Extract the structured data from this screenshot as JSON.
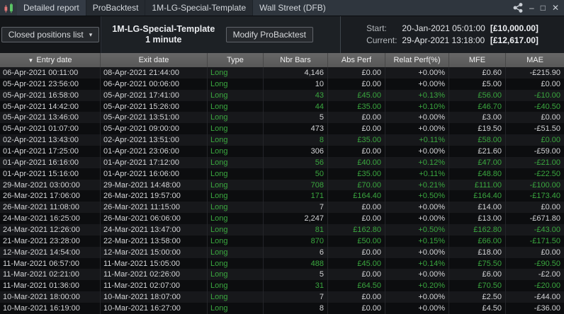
{
  "window": {
    "tabs": [
      {
        "label": "Detailed report",
        "active": true
      },
      {
        "label": "ProBacktest"
      },
      {
        "label": "1M-LG-Special-Template"
      },
      {
        "label": "Wall Street (DFB)",
        "plain": true
      }
    ],
    "controls": {
      "minimize": "–",
      "maximize": "□",
      "close": "✕"
    }
  },
  "toolbar": {
    "view_selector": {
      "label": "Closed positions list",
      "caret": "▾"
    },
    "instrument": {
      "name": "1M-LG-Special-Template",
      "timeframe": "1 minute"
    },
    "modify_button": "Modify ProBacktest",
    "account": {
      "start_label": "Start:",
      "start_date": "20-Jan-2021 05:01:00",
      "start_value": "[£10,000.00]",
      "current_label": "Current:",
      "current_date": "29-Apr-2021 13:18:00",
      "current_value": "[£12,617.00]"
    }
  },
  "colors": {
    "profit_green": "#3aa73f",
    "header_gray": "#5f5f5f",
    "titlebar": "#2f363e"
  },
  "table": {
    "sort_icon": "▼",
    "columns": [
      "Entry date",
      "Exit date",
      "Type",
      "Nbr Bars",
      "Abs Perf",
      "Relat Perf(%)",
      "MFE",
      "MAE"
    ],
    "column_keys": [
      "entry-date",
      "exit-date",
      "type",
      "nbr-bars",
      "abs-perf",
      "relat-perf",
      "mfe",
      "mae"
    ],
    "rows": [
      {
        "cells": [
          "06-Apr-2021 00:11:00",
          "08-Apr-2021 21:44:00",
          "Long",
          "4,146",
          "£0.00",
          "+0.00%",
          "£0.60",
          "-£215.90"
        ],
        "win": false
      },
      {
        "cells": [
          "05-Apr-2021 23:56:00",
          "06-Apr-2021 00:06:00",
          "Long",
          "10",
          "£0.00",
          "+0.00%",
          "£5.00",
          "£0.00"
        ],
        "win": false
      },
      {
        "cells": [
          "05-Apr-2021 16:58:00",
          "05-Apr-2021 17:41:00",
          "Long",
          "43",
          "£45.00",
          "+0.13%",
          "£56.00",
          "-£10.00"
        ],
        "win": true
      },
      {
        "cells": [
          "05-Apr-2021 14:42:00",
          "05-Apr-2021 15:26:00",
          "Long",
          "44",
          "£35.00",
          "+0.10%",
          "£46.70",
          "-£40.50"
        ],
        "win": true
      },
      {
        "cells": [
          "05-Apr-2021 13:46:00",
          "05-Apr-2021 13:51:00",
          "Long",
          "5",
          "£0.00",
          "+0.00%",
          "£3.00",
          "£0.00"
        ],
        "win": false
      },
      {
        "cells": [
          "05-Apr-2021 01:07:00",
          "05-Apr-2021 09:00:00",
          "Long",
          "473",
          "£0.00",
          "+0.00%",
          "£19.50",
          "-£51.50"
        ],
        "win": false
      },
      {
        "cells": [
          "02-Apr-2021 13:43:00",
          "02-Apr-2021 13:51:00",
          "Long",
          "8",
          "£35.00",
          "+0.11%",
          "£58.00",
          "£0.00"
        ],
        "win": true
      },
      {
        "cells": [
          "01-Apr-2021 17:25:00",
          "01-Apr-2021 23:06:00",
          "Long",
          "306",
          "£0.00",
          "+0.00%",
          "£21.60",
          "-£59.00"
        ],
        "win": false
      },
      {
        "cells": [
          "01-Apr-2021 16:16:00",
          "01-Apr-2021 17:12:00",
          "Long",
          "56",
          "£40.00",
          "+0.12%",
          "£47.00",
          "-£21.00"
        ],
        "win": true
      },
      {
        "cells": [
          "01-Apr-2021 15:16:00",
          "01-Apr-2021 16:06:00",
          "Long",
          "50",
          "£35.00",
          "+0.11%",
          "£48.80",
          "-£22.50"
        ],
        "win": true
      },
      {
        "cells": [
          "29-Mar-2021 03:00:00",
          "29-Mar-2021 14:48:00",
          "Long",
          "708",
          "£70.00",
          "+0.21%",
          "£111.00",
          "-£100.00"
        ],
        "win": true
      },
      {
        "cells": [
          "26-Mar-2021 17:06:00",
          "26-Mar-2021 19:57:00",
          "Long",
          "171",
          "£164.40",
          "+0.50%",
          "£164.40",
          "-£173.40"
        ],
        "win": true
      },
      {
        "cells": [
          "26-Mar-2021 11:08:00",
          "26-Mar-2021 11:15:00",
          "Long",
          "7",
          "£0.00",
          "+0.00%",
          "£14.00",
          "£0.00"
        ],
        "win": false
      },
      {
        "cells": [
          "24-Mar-2021 16:25:00",
          "26-Mar-2021 06:06:00",
          "Long",
          "2,247",
          "£0.00",
          "+0.00%",
          "£13.00",
          "-£671.80"
        ],
        "win": false
      },
      {
        "cells": [
          "24-Mar-2021 12:26:00",
          "24-Mar-2021 13:47:00",
          "Long",
          "81",
          "£162.80",
          "+0.50%",
          "£162.80",
          "-£43.00"
        ],
        "win": true
      },
      {
        "cells": [
          "21-Mar-2021 23:28:00",
          "22-Mar-2021 13:58:00",
          "Long",
          "870",
          "£50.00",
          "+0.15%",
          "£66.00",
          "-£171.50"
        ],
        "win": true
      },
      {
        "cells": [
          "12-Mar-2021 14:54:00",
          "12-Mar-2021 15:00:00",
          "Long",
          "6",
          "£0.00",
          "+0.00%",
          "£18.00",
          "£0.00"
        ],
        "win": false
      },
      {
        "cells": [
          "11-Mar-2021 06:57:00",
          "11-Mar-2021 15:05:00",
          "Long",
          "488",
          "£45.00",
          "+0.14%",
          "£75.50",
          "-£90.50"
        ],
        "win": true
      },
      {
        "cells": [
          "11-Mar-2021 02:21:00",
          "11-Mar-2021 02:26:00",
          "Long",
          "5",
          "£0.00",
          "+0.00%",
          "£6.00",
          "-£2.00"
        ],
        "win": false
      },
      {
        "cells": [
          "11-Mar-2021 01:36:00",
          "11-Mar-2021 02:07:00",
          "Long",
          "31",
          "£64.50",
          "+0.20%",
          "£70.50",
          "-£20.00"
        ],
        "win": true
      },
      {
        "cells": [
          "10-Mar-2021 18:00:00",
          "10-Mar-2021 18:07:00",
          "Long",
          "7",
          "£0.00",
          "+0.00%",
          "£2.50",
          "-£44.00"
        ],
        "win": false
      },
      {
        "cells": [
          "10-Mar-2021 16:19:00",
          "10-Mar-2021 16:27:00",
          "Long",
          "8",
          "£0.00",
          "+0.00%",
          "£4.50",
          "-£36.00"
        ],
        "win": false
      }
    ]
  }
}
